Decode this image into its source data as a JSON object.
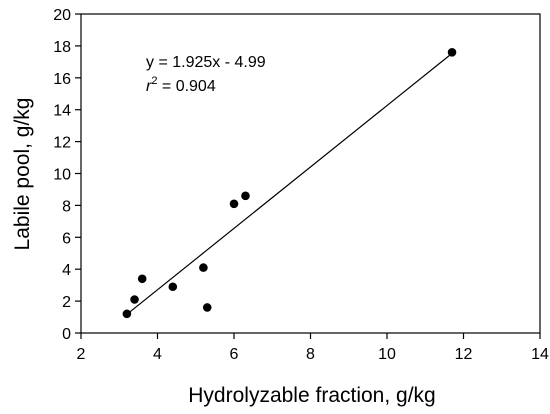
{
  "chart_data": {
    "type": "scatter",
    "title": "",
    "xlabel": "Hydrolyzable fraction, g/kg",
    "ylabel": "Labile pool, g/kg",
    "xlim": [
      2,
      14
    ],
    "ylim": [
      0,
      20
    ],
    "x_ticks": [
      "2",
      "4",
      "6",
      "8",
      "10",
      "12",
      "14"
    ],
    "y_ticks": [
      "0",
      "2",
      "4",
      "6",
      "8",
      "10",
      "12",
      "14",
      "16",
      "18",
      "20"
    ],
    "grid": false,
    "legend": "none",
    "series": [
      {
        "points": [
          {
            "x": 3.2,
            "y": 1.2
          },
          {
            "x": 3.4,
            "y": 2.1
          },
          {
            "x": 3.6,
            "y": 3.4
          },
          {
            "x": 4.4,
            "y": 2.9
          },
          {
            "x": 5.2,
            "y": 4.1
          },
          {
            "x": 5.3,
            "y": 1.6
          },
          {
            "x": 6.0,
            "y": 8.1
          },
          {
            "x": 6.3,
            "y": 8.6
          },
          {
            "x": 11.7,
            "y": 17.6
          }
        ],
        "color": "#000000"
      }
    ],
    "regression": {
      "slope": 1.925,
      "intercept": -4.99,
      "x_range": [
        3.2,
        11.7
      ],
      "equation_label": "y = 1.925x - 4.99",
      "r2_prefix": "r",
      "r2_exponent": "2",
      "r2_value": " = 0.904"
    }
  }
}
